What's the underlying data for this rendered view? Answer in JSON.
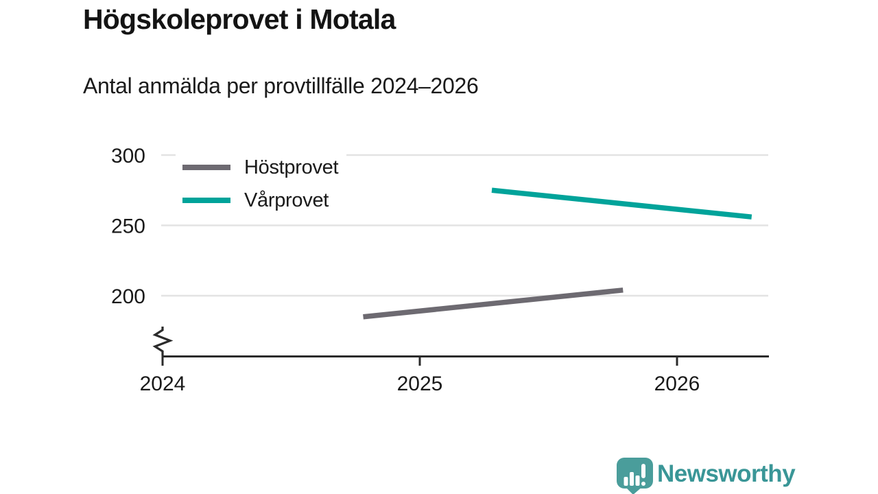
{
  "chart_data": {
    "type": "line",
    "title": "Högskoleprovet i Motala",
    "subtitle": "Antal anmälda per provtillfälle 2024–2026",
    "x_axis": {
      "tick_labels": [
        "2024",
        "2025",
        "2026"
      ],
      "tick_values": [
        2024,
        2025,
        2026
      ],
      "range": [
        2024,
        2026.36
      ],
      "has_axis_break": true
    },
    "y_axis": {
      "tick_labels": [
        "300",
        "250",
        "200"
      ],
      "tick_values": [
        300,
        250,
        200
      ],
      "gridlines": true,
      "range_shown": [
        178,
        300
      ]
    },
    "series": [
      {
        "id": "hostprovet",
        "name": "Höstprovet",
        "color": "#6d6a71",
        "points": [
          {
            "x": 2024.78,
            "value": 185
          },
          {
            "x": 2025.79,
            "value": 204
          }
        ]
      },
      {
        "id": "varprovet",
        "name": "Vårprovet",
        "color": "#00a39a",
        "points": [
          {
            "x": 2025.28,
            "value": 275
          },
          {
            "x": 2026.29,
            "value": 256
          }
        ]
      }
    ],
    "legend_position": "top-left-inside"
  },
  "footer": {
    "brand": "Newsworthy",
    "brand_color": "#3a9697",
    "icon_color": "#4a9d9b"
  }
}
